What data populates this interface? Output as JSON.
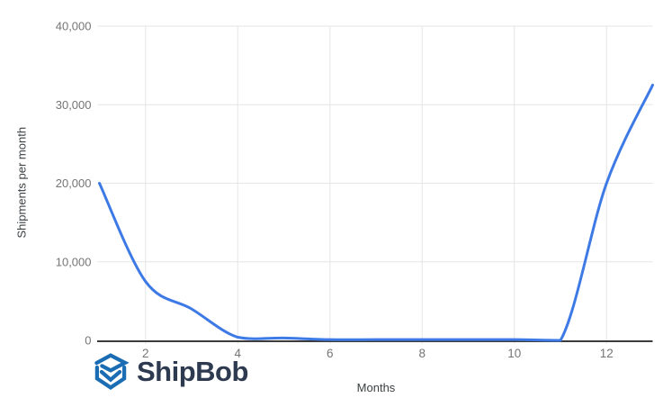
{
  "chart_data": {
    "type": "line",
    "x": [
      1,
      2,
      3,
      4,
      5,
      6,
      7,
      8,
      9,
      10,
      11,
      12,
      13
    ],
    "values": [
      20000,
      7500,
      4000,
      400,
      300,
      100,
      100,
      100,
      100,
      100,
      0,
      20000,
      32500
    ],
    "series_name": "Shipments",
    "title": "",
    "xlabel": "Months",
    "ylabel": "Shipments per month",
    "xlim": [
      1,
      13
    ],
    "ylim": [
      0,
      40000
    ],
    "xticks": [
      2,
      4,
      6,
      8,
      10,
      12
    ],
    "xtick_labels": [
      "2",
      "4",
      "6",
      "8",
      "10",
      "12"
    ],
    "yticks": [
      0,
      10000,
      20000,
      30000,
      40000
    ],
    "ytick_labels": [
      "0",
      "10,000",
      "20,000",
      "30,000",
      "40,000"
    ],
    "grid": true,
    "legend": "none",
    "line_color": "#3d7ae5"
  },
  "colors": {
    "background": "#ffffff",
    "grid": "#e6e6e6",
    "axis": "#3c3c3c",
    "tick_label": "#757575",
    "axis_title": "#3c4043",
    "logo_icon_blue": "#1a6cb3",
    "logo_text_navy": "#2d3a50"
  },
  "branding": {
    "wordmark": "ShipBob",
    "icon": "shipbob-cube-icon"
  }
}
